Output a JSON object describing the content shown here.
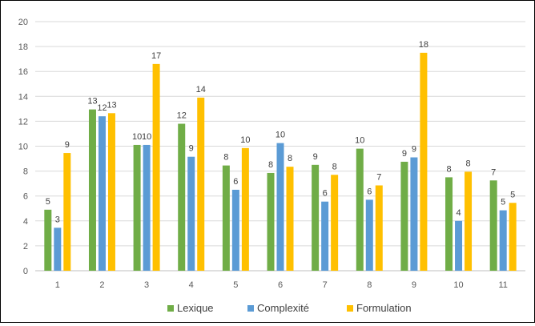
{
  "chart_data": {
    "type": "bar",
    "title": "",
    "xlabel": "",
    "ylabel": "",
    "categories": [
      "1",
      "2",
      "3",
      "4",
      "5",
      "6",
      "7",
      "8",
      "9",
      "10",
      "11"
    ],
    "ylim": [
      0,
      20
    ],
    "yticks": [
      0,
      2,
      4,
      6,
      8,
      10,
      12,
      14,
      16,
      18,
      20
    ],
    "grid": true,
    "legend_position": "bottom",
    "series": [
      {
        "name": "Lexique",
        "color": "#70AD47",
        "values": [
          4.9,
          12.95,
          10.1,
          11.8,
          8.45,
          7.85,
          8.5,
          9.8,
          8.75,
          7.5,
          7.25
        ],
        "labels": [
          "5",
          "13",
          "10",
          "12",
          "8",
          "8",
          "9",
          "10",
          "9",
          "8",
          "7"
        ]
      },
      {
        "name": "Complexité",
        "color": "#5B9BD5",
        "values": [
          3.45,
          12.4,
          10.1,
          9.15,
          6.5,
          10.25,
          5.55,
          5.7,
          9.1,
          4.0,
          4.85
        ],
        "labels": [
          "3",
          "12",
          "10",
          "9",
          "6",
          "10",
          "6",
          "6",
          "9",
          "4",
          "5"
        ]
      },
      {
        "name": "Formulation",
        "color": "#FFC000",
        "values": [
          9.45,
          12.65,
          16.6,
          13.9,
          9.85,
          8.35,
          7.7,
          6.85,
          17.5,
          7.95,
          5.45
        ],
        "labels": [
          "9",
          "13",
          "17",
          "14",
          "10",
          "8",
          "8",
          "7",
          "18",
          "8",
          "5"
        ]
      }
    ]
  }
}
